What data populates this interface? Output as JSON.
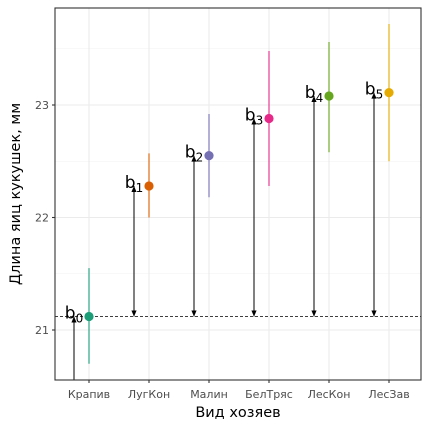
{
  "chart_data": {
    "type": "pointrange",
    "xlabel": "Вид хозяев",
    "ylabel": "Длина яиц кукушек, мм",
    "categories": [
      "Крапив",
      "ЛугКон",
      "Малин",
      "БелТряс",
      "ЛесКон",
      "ЛесЗав"
    ],
    "ylim": [
      20.55,
      23.88
    ],
    "yticks": [
      21,
      22,
      23
    ],
    "grid": true,
    "legend": "none",
    "baseline": 21.12,
    "series": [
      {
        "points": [
          {
            "x": "Крапив",
            "y": 21.12,
            "low": 20.7,
            "high": 21.55,
            "color": "#1B9E77",
            "label": "b",
            "sub": "0"
          },
          {
            "x": "ЛугКон",
            "y": 22.28,
            "low": 22.0,
            "high": 22.57,
            "color": "#D95F02",
            "label": "b",
            "sub": "1"
          },
          {
            "x": "Малин",
            "y": 22.55,
            "low": 22.18,
            "high": 22.92,
            "color": "#7570B3",
            "label": "b",
            "sub": "2"
          },
          {
            "x": "БелТряс",
            "y": 22.88,
            "low": 22.28,
            "high": 23.48,
            "color": "#E7298A",
            "label": "b",
            "sub": "3"
          },
          {
            "x": "ЛесКон",
            "y": 23.08,
            "low": 22.58,
            "high": 23.56,
            "color": "#66A61E",
            "label": "b",
            "sub": "4"
          },
          {
            "x": "ЛесЗав",
            "y": 23.11,
            "low": 22.5,
            "high": 23.72,
            "color": "#E6AB02",
            "label": "b",
            "sub": "5"
          }
        ]
      }
    ]
  }
}
